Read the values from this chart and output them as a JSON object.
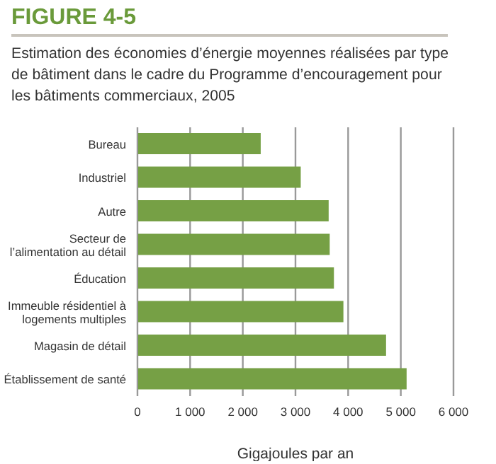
{
  "chart_data": {
    "type": "bar",
    "orientation": "horizontal",
    "title": "FIGURE 4-5",
    "subtitle": "Estimation des économies d’énergie moyennes réalisées par type de bâtiment dans le cadre du Programme d’encouragement pour les bâtiments commerciaux, 2005",
    "xlabel": "Gigajoules par an",
    "categories": [
      "Bureau",
      "Industriel",
      "Autre",
      "Secteur de l’alimentation au détail",
      "Éducation",
      "Immeuble résidentiel à logements multiples",
      "Magasin de détail",
      "Établissement de santé"
    ],
    "values": [
      2340,
      3100,
      3630,
      3650,
      3730,
      3910,
      4720,
      5110
    ],
    "color": "#76a045",
    "xlim": [
      0,
      6000
    ],
    "xticks": [
      0,
      {
        "value": 1000,
        "label": "1 000"
      },
      {
        "value": 2000,
        "label": "2 000"
      },
      {
        "value": 3000,
        "label": "3 000"
      },
      {
        "value": 4000,
        "label": "4 000"
      },
      {
        "value": 5000,
        "label": "5 000"
      },
      {
        "value": 6000,
        "label": "6 000"
      }
    ],
    "grid": "x"
  }
}
